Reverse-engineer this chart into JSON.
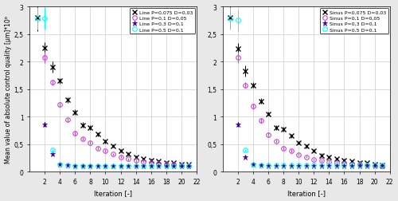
{
  "left": {
    "series": [
      {
        "label": "Line P=0,075 D=0,03",
        "color": "black",
        "marker": "x",
        "markersize": 4,
        "x": [
          1,
          2,
          3,
          4,
          5,
          6,
          7,
          8,
          9,
          10,
          11,
          12,
          13,
          14,
          15,
          16,
          17,
          18,
          19,
          20,
          21
        ],
        "y": [
          2.8,
          2.25,
          1.9,
          1.65,
          1.3,
          1.08,
          0.85,
          0.8,
          0.68,
          0.55,
          0.47,
          0.38,
          0.32,
          0.27,
          0.23,
          0.21,
          0.19,
          0.17,
          0.16,
          0.14,
          0.13
        ],
        "yerr": [
          0.25,
          0.1,
          0.1,
          0.05,
          0.05,
          0.05,
          0.05,
          0.04,
          0.04,
          0.04,
          0.03,
          0.03,
          0.03,
          0.03,
          0.02,
          0.02,
          0.02,
          0.02,
          0.02,
          0.02,
          0.02
        ]
      },
      {
        "label": "Line P=0,1 D=0,05",
        "color": "#CC44CC",
        "marker": "o",
        "markersize": 4,
        "x": [
          2,
          3,
          4,
          5,
          6,
          7,
          8,
          9,
          10,
          11,
          12,
          13,
          14,
          15,
          16,
          17,
          18,
          19,
          20,
          21
        ],
        "y": [
          2.07,
          1.62,
          1.22,
          0.94,
          0.7,
          0.6,
          0.52,
          0.43,
          0.38,
          0.32,
          0.27,
          0.23,
          0.2,
          0.18,
          0.16,
          0.15,
          0.14,
          0.13,
          0.12,
          0.11
        ],
        "yerr": [
          0.1,
          0.05,
          0.05,
          0.04,
          0.04,
          0.03,
          0.03,
          0.03,
          0.03,
          0.02,
          0.02,
          0.02,
          0.02,
          0.02,
          0.02,
          0.02,
          0.02,
          0.01,
          0.01,
          0.01
        ]
      },
      {
        "label": "Line P=0,3 D=0,1",
        "color": "#440088",
        "marker": "*",
        "markersize": 5,
        "x": [
          2,
          3,
          4,
          5,
          6,
          7,
          8,
          9,
          10,
          11,
          12,
          13,
          14,
          15,
          16,
          17,
          18,
          19,
          20,
          21
        ],
        "y": [
          0.86,
          0.32,
          0.13,
          0.12,
          0.11,
          0.1,
          0.1,
          0.1,
          0.1,
          0.1,
          0.1,
          0.1,
          0.1,
          0.1,
          0.1,
          0.1,
          0.1,
          0.1,
          0.1,
          0.1
        ],
        "yerr": [
          0.04,
          0.02,
          0.01,
          0.01,
          0.01,
          0.01,
          0.01,
          0.01,
          0.01,
          0.01,
          0.01,
          0.01,
          0.01,
          0.01,
          0.01,
          0.01,
          0.01,
          0.01,
          0.01,
          0.01
        ]
      },
      {
        "label": "Line P=0,5 D=0,1",
        "color": "cyan",
        "marker": "o",
        "markersize": 4,
        "x": [
          1,
          2,
          3,
          4,
          5,
          6,
          7,
          8,
          9,
          10,
          11,
          12,
          13,
          14,
          15,
          16,
          17,
          18,
          19,
          20,
          21
        ],
        "y": [
          2.78,
          2.78,
          0.39,
          0.13,
          0.12,
          0.11,
          0.11,
          0.11,
          0.11,
          0.11,
          0.11,
          0.11,
          0.11,
          0.11,
          0.11,
          0.11,
          0.11,
          0.11,
          0.11,
          0.11,
          0.11
        ],
        "yerr": [
          0.2,
          0.2,
          0.02,
          0.01,
          0.01,
          0.01,
          0.01,
          0.01,
          0.01,
          0.01,
          0.01,
          0.01,
          0.01,
          0.01,
          0.01,
          0.01,
          0.01,
          0.01,
          0.01,
          0.01,
          0.01
        ]
      }
    ]
  },
  "right": {
    "series": [
      {
        "label": "Sinus P=0,075 D=0,03",
        "color": "black",
        "marker": "x",
        "markersize": 4,
        "x": [
          1,
          2,
          3,
          4,
          5,
          6,
          7,
          8,
          9,
          10,
          11,
          12,
          13,
          14,
          15,
          16,
          17,
          18,
          19,
          20,
          21
        ],
        "y": [
          2.8,
          2.23,
          1.83,
          1.57,
          1.28,
          1.05,
          0.8,
          0.77,
          0.65,
          0.53,
          0.46,
          0.38,
          0.3,
          0.27,
          0.23,
          0.21,
          0.19,
          0.17,
          0.16,
          0.14,
          0.12
        ],
        "yerr": [
          0.2,
          0.1,
          0.1,
          0.05,
          0.05,
          0.04,
          0.04,
          0.04,
          0.04,
          0.03,
          0.03,
          0.03,
          0.03,
          0.02,
          0.02,
          0.02,
          0.02,
          0.02,
          0.02,
          0.02,
          0.02
        ]
      },
      {
        "label": "Sinus P=0,1 D=0,05",
        "color": "#CC44CC",
        "marker": "o",
        "markersize": 4,
        "x": [
          2,
          3,
          4,
          5,
          6,
          7,
          8,
          9,
          10,
          11,
          12,
          13,
          14,
          15,
          16,
          17,
          18,
          19,
          20,
          21
        ],
        "y": [
          2.07,
          1.57,
          1.19,
          0.93,
          0.67,
          0.55,
          0.43,
          0.38,
          0.31,
          0.27,
          0.22,
          0.2,
          0.18,
          0.17,
          0.15,
          0.14,
          0.13,
          0.12,
          0.12,
          0.11
        ],
        "yerr": [
          0.1,
          0.05,
          0.05,
          0.04,
          0.04,
          0.03,
          0.03,
          0.03,
          0.02,
          0.02,
          0.02,
          0.02,
          0.02,
          0.02,
          0.02,
          0.02,
          0.01,
          0.01,
          0.01,
          0.01
        ]
      },
      {
        "label": "Sinus P=0,3 D=0,1",
        "color": "#440088",
        "marker": "*",
        "markersize": 5,
        "x": [
          2,
          3,
          4,
          5,
          6,
          7,
          8,
          9,
          10,
          11,
          12,
          13,
          14,
          15,
          16,
          17,
          18,
          19,
          20,
          21
        ],
        "y": [
          0.86,
          0.27,
          0.13,
          0.12,
          0.11,
          0.11,
          0.11,
          0.11,
          0.11,
          0.11,
          0.11,
          0.11,
          0.11,
          0.11,
          0.11,
          0.11,
          0.11,
          0.11,
          0.11,
          0.11
        ],
        "yerr": [
          0.04,
          0.02,
          0.01,
          0.01,
          0.01,
          0.01,
          0.01,
          0.01,
          0.01,
          0.01,
          0.01,
          0.01,
          0.01,
          0.01,
          0.01,
          0.01,
          0.01,
          0.01,
          0.01,
          0.01
        ]
      },
      {
        "label": "Sinus P=0,5 D=0,1",
        "color": "cyan",
        "marker": "o",
        "markersize": 4,
        "x": [
          1,
          2,
          3,
          4,
          5,
          6,
          7,
          8,
          9,
          10,
          11,
          12,
          13,
          14,
          15,
          16,
          17,
          18,
          19,
          20,
          21
        ],
        "y": [
          2.78,
          2.75,
          0.39,
          0.13,
          0.12,
          0.12,
          0.12,
          0.12,
          0.12,
          0.12,
          0.12,
          0.12,
          0.12,
          0.12,
          0.12,
          0.12,
          0.12,
          0.12,
          0.12,
          0.12,
          0.12
        ],
        "yerr": [
          0.2,
          0.2,
          0.02,
          0.01,
          0.01,
          0.01,
          0.01,
          0.01,
          0.01,
          0.01,
          0.01,
          0.01,
          0.01,
          0.01,
          0.01,
          0.01,
          0.01,
          0.01,
          0.01,
          0.01,
          0.01
        ]
      }
    ]
  },
  "ylabel": "Mean value of absolute control quality [μm]*10⁶",
  "xlabel": "Iteration [-]",
  "ylim": [
    0,
    3.0
  ],
  "xlim": [
    0,
    22
  ],
  "ytick_vals": [
    0,
    0.5,
    1.0,
    1.5,
    2.0,
    2.5,
    3.0
  ],
  "ytick_labels": [
    "0",
    "0,5",
    "1",
    "1,5",
    "2",
    "2,5",
    "3"
  ],
  "xticks": [
    2,
    4,
    6,
    8,
    10,
    12,
    14,
    16,
    18,
    20,
    22
  ],
  "background_color": "#ffffff",
  "grid_color": "#cccccc",
  "fig_bg": "#e8e8e8"
}
